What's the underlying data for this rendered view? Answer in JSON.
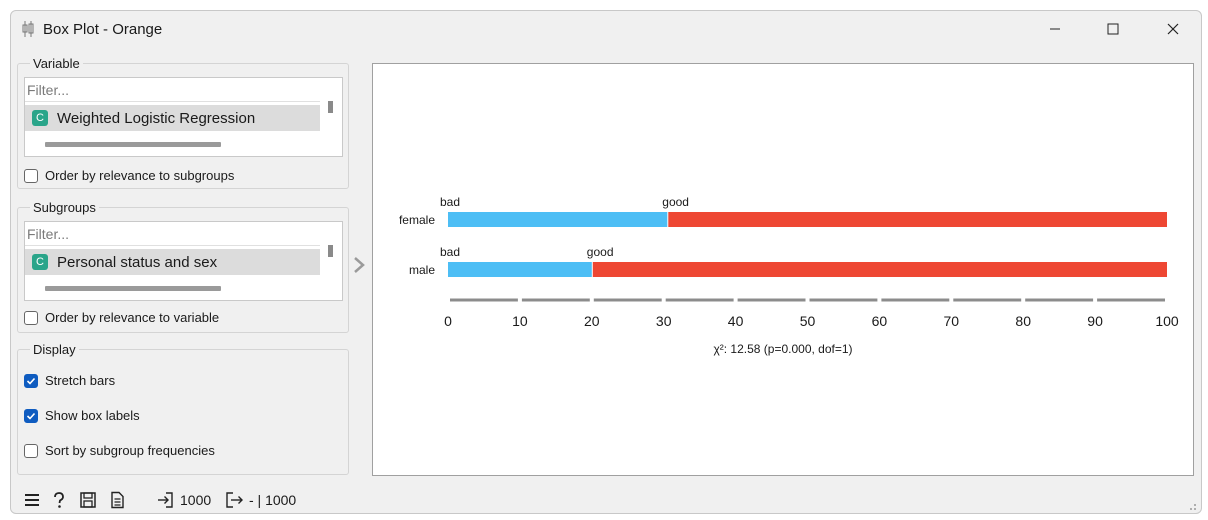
{
  "window": {
    "title": "Box Plot - Orange",
    "icon": "boxplot-app-icon"
  },
  "variable": {
    "legend": "Variable",
    "filter_placeholder": "Filter...",
    "selected": {
      "type_badge": "C",
      "label": "Weighted Logistic Regression"
    },
    "order_label": "Order by relevance to subgroups",
    "order_checked": false
  },
  "subgroups": {
    "legend": "Subgroups",
    "filter_placeholder": "Filter...",
    "selected": {
      "type_badge": "C",
      "label": "Personal status and sex"
    },
    "order_label": "Order by relevance to variable",
    "order_checked": false
  },
  "display": {
    "legend": "Display",
    "stretch_bars": {
      "label": "Stretch bars",
      "checked": true
    },
    "show_box_labels": {
      "label": "Show box labels",
      "checked": true
    },
    "sort_by_freq": {
      "label": "Sort by subgroup frequencies",
      "checked": false
    }
  },
  "colors": {
    "bad": "#4dbef5",
    "good": "#ee4733",
    "badge": "#2aa58a",
    "checkbox": "#0f5cc0"
  },
  "chart_data": {
    "type": "bar",
    "orientation": "horizontal-stacked",
    "categories": [
      "female",
      "male"
    ],
    "series": [
      {
        "name": "bad",
        "values": [
          30.5,
          20.0
        ]
      },
      {
        "name": "good",
        "values": [
          69.5,
          80.0
        ]
      }
    ],
    "segment_labels": [
      "bad",
      "good"
    ],
    "xlim": [
      0,
      100
    ],
    "xticks": [
      "0",
      "10",
      "20",
      "30",
      "40",
      "50",
      "60",
      "70",
      "80",
      "90",
      "100"
    ],
    "caption": "χ²: 12.58 (p=0.000, dof=1)"
  },
  "status": {
    "input_count": "1000",
    "output_text": "- | 1000"
  }
}
